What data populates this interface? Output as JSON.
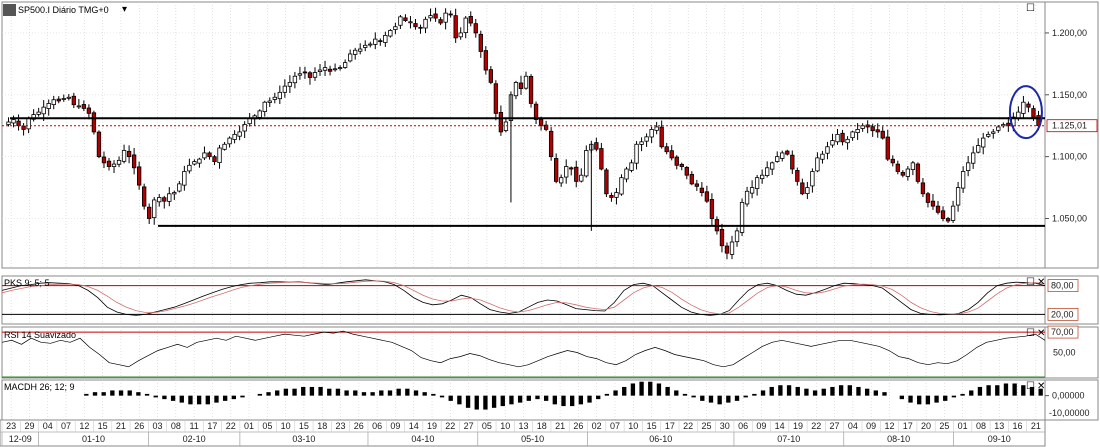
{
  "chart_data": [
    {
      "type": "candlestick",
      "title": "SP500.I Diário TMG+0",
      "y_ticks": [
        "1.200,00",
        "1.150,00",
        "1.100,00",
        "1.050,00"
      ],
      "ylim": [
        1010,
        1225
      ],
      "last_value_label": "1.125,01",
      "last_value": 1125.01,
      "support_level": 1044,
      "resistance_level": 1131,
      "highlight": "circle around most recent candles",
      "closes": [
        1128,
        1130,
        1125,
        1122,
        1131,
        1134,
        1136,
        1140,
        1143,
        1146,
        1145,
        1147,
        1148,
        1142,
        1141,
        1139,
        1135,
        1120,
        1100,
        1095,
        1092,
        1094,
        1097,
        1105,
        1100,
        1091,
        1077,
        1060,
        1050,
        1065,
        1067,
        1064,
        1070,
        1071,
        1078,
        1088,
        1093,
        1096,
        1098,
        1103,
        1100,
        1096,
        1107,
        1110,
        1115,
        1118,
        1120,
        1126,
        1131,
        1133,
        1137,
        1144,
        1145,
        1148,
        1152,
        1157,
        1160,
        1165,
        1167,
        1168,
        1164,
        1168,
        1170,
        1172,
        1169,
        1171,
        1172,
        1176,
        1183,
        1186,
        1187,
        1190,
        1191,
        1195,
        1193,
        1198,
        1202,
        1205,
        1213,
        1210,
        1209,
        1205,
        1204,
        1211,
        1214,
        1212,
        1208,
        1216,
        1215,
        1196,
        1200,
        1212,
        1208,
        1200,
        1185,
        1170,
        1160,
        1135,
        1120,
        1128,
        1150,
        1160,
        1155,
        1165,
        1143,
        1130,
        1125,
        1122,
        1100,
        1080,
        1083,
        1092,
        1090,
        1080,
        1085,
        1105,
        1110,
        1106,
        1090,
        1070,
        1067,
        1071,
        1083,
        1090,
        1095,
        1110,
        1112,
        1116,
        1122,
        1124,
        1108,
        1104,
        1099,
        1093,
        1092,
        1085,
        1078,
        1076,
        1071,
        1064,
        1050,
        1040,
        1028,
        1022,
        1031,
        1040,
        1063,
        1072,
        1075,
        1083,
        1085,
        1091,
        1095,
        1100,
        1103,
        1102,
        1090,
        1080,
        1070,
        1075,
        1088,
        1099,
        1102,
        1108,
        1113,
        1118,
        1112,
        1114,
        1120,
        1122,
        1125,
        1124,
        1121,
        1120,
        1115,
        1098,
        1095,
        1088,
        1085,
        1090,
        1095,
        1080,
        1070,
        1063,
        1060,
        1055,
        1050,
        1048,
        1060,
        1075,
        1088,
        1095,
        1103,
        1109,
        1115,
        1118,
        1120,
        1124,
        1126,
        1125,
        1132,
        1136,
        1144,
        1140,
        1132,
        1125.01
      ],
      "x_day_labels": [
        "23",
        "29",
        "04",
        "07",
        "12",
        "15",
        "21",
        "26",
        "03",
        "08",
        "11",
        "17",
        "22",
        "01",
        "05",
        "10",
        "15",
        "18",
        "23",
        "26",
        "06",
        "09",
        "14",
        "19",
        "22",
        "27",
        "05",
        "10",
        "13",
        "18",
        "21",
        "26",
        "02",
        "07",
        "10",
        "15",
        "17",
        "22",
        "25",
        "30",
        "06",
        "09",
        "14",
        "19",
        "22",
        "27",
        "04",
        "09",
        "12",
        "17",
        "20",
        "25",
        "01",
        "08",
        "13",
        "16",
        "21"
      ],
      "x_month_labels": [
        "12-09",
        "01-10",
        "02-10",
        "03-10",
        "04-10",
        "05-10",
        "06-10",
        "07-10",
        "08-10",
        "09-10"
      ]
    },
    {
      "type": "line",
      "title": "PKS 9; 5; 5",
      "levels": [
        "80,00",
        "20,00"
      ],
      "level_values": [
        80,
        20
      ],
      "ylim": [
        0,
        100
      ],
      "series": [
        {
          "color": "#000000",
          "values": [
            70,
            75,
            80,
            82,
            85,
            86,
            85,
            84,
            80,
            70,
            55,
            35,
            25,
            20,
            18,
            20,
            25,
            30,
            35,
            42,
            50,
            58,
            65,
            72,
            78,
            82,
            85,
            86,
            88,
            88,
            87,
            88,
            86,
            84,
            82,
            85,
            88,
            90,
            92,
            90,
            88,
            82,
            70,
            55,
            45,
            40,
            42,
            50,
            60,
            55,
            42,
            30,
            25,
            22,
            25,
            35,
            45,
            50,
            48,
            40,
            32,
            30,
            28,
            27,
            45,
            70,
            82,
            85,
            80,
            65,
            50,
            35,
            25,
            20,
            18,
            20,
            28,
            50,
            70,
            82,
            85,
            80,
            70,
            62,
            60,
            65,
            72,
            80,
            85,
            84,
            82,
            80,
            75,
            60,
            45,
            30,
            22,
            20,
            19,
            20,
            22,
            30,
            45,
            65,
            80,
            85,
            87,
            86,
            85,
            80
          ]
        },
        {
          "color": "#d07070",
          "values": [
            65,
            70,
            74,
            78,
            80,
            82,
            83,
            83,
            82,
            78,
            70,
            58,
            45,
            35,
            28,
            24,
            24,
            27,
            32,
            37,
            43,
            50,
            57,
            63,
            70,
            76,
            80,
            83,
            85,
            86,
            87,
            87,
            86,
            85,
            84,
            84,
            85,
            87,
            89,
            90,
            89,
            86,
            80,
            70,
            60,
            52,
            48,
            48,
            52,
            54,
            50,
            42,
            34,
            28,
            25,
            28,
            34,
            40,
            45,
            44,
            40,
            35,
            32,
            30,
            35,
            50,
            65,
            75,
            80,
            76,
            66,
            52,
            40,
            30,
            24,
            21,
            23,
            35,
            50,
            65,
            76,
            80,
            77,
            70,
            65,
            64,
            67,
            73,
            79,
            82,
            83,
            82,
            79,
            72,
            60,
            45,
            34,
            26,
            22,
            21,
            21,
            25,
            33,
            48,
            63,
            75,
            82,
            85,
            86,
            84
          ]
        }
      ]
    },
    {
      "type": "line",
      "title": "RSI 14 Suavizado",
      "levels": [
        "70,00",
        "50,00"
      ],
      "level_values": [
        70,
        50
      ],
      "ylim": [
        25,
        75
      ],
      "series": [
        {
          "color": "#000000",
          "values": [
            60,
            62,
            58,
            64,
            60,
            59,
            62,
            60,
            64,
            55,
            48,
            40,
            38,
            36,
            42,
            47,
            52,
            55,
            58,
            55,
            60,
            62,
            64,
            62,
            66,
            64,
            62,
            64,
            66,
            68,
            67,
            66,
            68,
            70,
            69,
            71,
            68,
            66,
            64,
            62,
            60,
            56,
            52,
            45,
            42,
            40,
            44,
            46,
            49,
            47,
            43,
            40,
            38,
            36,
            38,
            42,
            46,
            49,
            52,
            50,
            46,
            44,
            40,
            38,
            42,
            48,
            52,
            55,
            52,
            48,
            46,
            44,
            42,
            38,
            36,
            38,
            44,
            50,
            56,
            60,
            62,
            60,
            58,
            56,
            58,
            60,
            62,
            62,
            60,
            58,
            56,
            52,
            46,
            44,
            40,
            38,
            40,
            39,
            42,
            48,
            55,
            60,
            62,
            64,
            65,
            66,
            68,
            62
          ]
        }
      ]
    },
    {
      "type": "bar",
      "title": "MACDH 26; 12; 9",
      "y_ticks": [
        "0,00000",
        "-10,00000"
      ],
      "ylim": [
        -14,
        9
      ],
      "values": [
        1,
        2,
        2,
        3,
        3,
        3,
        2,
        1,
        -1,
        -2,
        -3,
        -4,
        -5,
        -5,
        -5,
        -4,
        -3,
        -2,
        -1,
        0,
        1,
        2,
        3,
        4,
        4,
        5,
        5,
        5,
        4,
        4,
        3,
        3,
        2,
        2,
        3,
        3,
        4,
        4,
        3,
        2,
        1,
        -1,
        -3,
        -5,
        -7,
        -8,
        -8,
        -7,
        -6,
        -5,
        -4,
        -3,
        -2,
        -3,
        -5,
        -6,
        -6,
        -5,
        -4,
        -2,
        1,
        3,
        5,
        7,
        8,
        8,
        7,
        5,
        3,
        1,
        -1,
        -3,
        -4,
        -5,
        -4,
        -3,
        -1,
        1,
        3,
        5,
        6,
        6,
        5,
        4,
        3,
        4,
        5,
        6,
        6,
        5,
        4,
        3,
        2,
        0,
        -2,
        -4,
        -5,
        -5,
        -4,
        -3,
        -1,
        1,
        3,
        5,
        6,
        6,
        7,
        7,
        6,
        5,
        4
      ]
    }
  ],
  "panels": {
    "stochastic_title": "PKS 9; 5; 5",
    "rsi_title": "RSI 14 Suavizado",
    "macd_title": "MACDH 26; 12; 9"
  },
  "icons": [
    "maximize-icon",
    "close-icon",
    "dropdown-arrow-icon"
  ]
}
